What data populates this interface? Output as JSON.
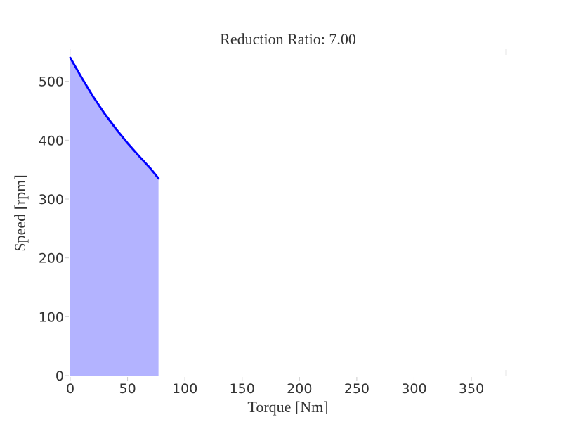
{
  "chart_data": {
    "type": "area",
    "title": "Reduction Ratio: 7.00",
    "xlabel": "Torque [Nm]",
    "ylabel": "Speed [rpm]",
    "xlim": [
      0,
      380
    ],
    "ylim": [
      0,
      545
    ],
    "xticks": [
      0,
      50,
      100,
      150,
      200,
      250,
      300,
      350
    ],
    "yticks": [
      0,
      100,
      200,
      300,
      400,
      500
    ],
    "grid": false,
    "legend": "none",
    "series": [
      {
        "x": [
          0,
          10,
          20,
          30,
          40,
          50,
          60,
          70,
          77
        ],
        "y": [
          540,
          506,
          474,
          445,
          419,
          395,
          373,
          352,
          335
        ],
        "line_color": "#0000ff",
        "fill_color": "#b3b3ff"
      }
    ]
  }
}
